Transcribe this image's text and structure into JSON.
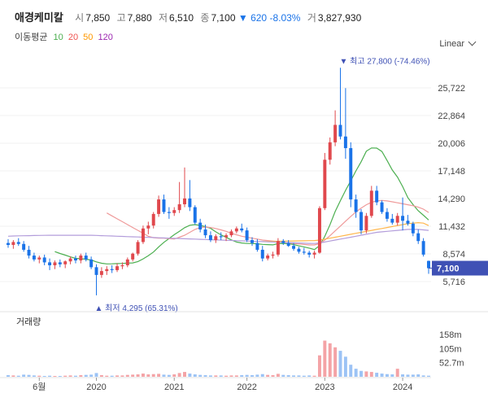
{
  "header": {
    "name": "애경케미칼",
    "open_label": "시",
    "open": "7,850",
    "high_label": "고",
    "high": "7,880",
    "low_label": "저",
    "low": "6,510",
    "close_label": "종",
    "close": "7,100",
    "change_arrow": "▼",
    "change": "620",
    "change_pct": "-8.03%",
    "volume_label": "거",
    "volume": "3,827,930",
    "ma_label": "이동평균",
    "ma_periods": [
      {
        "label": "10",
        "color": "#4caf50"
      },
      {
        "label": "20",
        "color": "#ef5350"
      },
      {
        "label": "50",
        "color": "#ff9800"
      },
      {
        "label": "120",
        "color": "#9c27b0"
      }
    ],
    "scale_label": "Linear"
  },
  "annotations": {
    "high_marker": "▼ 최고 27,800 (-74.46%)",
    "low_marker": "▲ 최저 4,295 (65.31%)",
    "last_price": "7,100",
    "volume_title": "거래량"
  },
  "chart_data": {
    "type": "candlestick",
    "title": "애경케미칼",
    "price_axis_ticks": [
      5716,
      8574,
      11432,
      14290,
      17148,
      20006,
      22864,
      25722
    ],
    "price_axis_labels": [
      "5,716",
      "8,574",
      "11,432",
      "14,290",
      "17,148",
      "20,006",
      "22,864",
      "25,722"
    ],
    "ylim": [
      4000,
      29000
    ],
    "x_tick_labels": [
      "6월",
      "2020",
      "2021",
      "2022",
      "2023",
      "2024"
    ],
    "last_price": 7100,
    "max_high": 27800,
    "min_low": 4295,
    "volume_axis_labels": [
      "158m",
      "105m",
      "52.7m"
    ],
    "volume_axis_values": [
      158,
      105,
      52.7
    ],
    "volume_unit": "m",
    "candles": [
      {
        "o": 9700,
        "h": 10100,
        "l": 9200,
        "c": 9500
      },
      {
        "o": 9500,
        "h": 10000,
        "l": 9100,
        "c": 9800
      },
      {
        "o": 9800,
        "h": 10200,
        "l": 9400,
        "c": 9600
      },
      {
        "o": 9600,
        "h": 9900,
        "l": 8800,
        "c": 9000
      },
      {
        "o": 9000,
        "h": 9400,
        "l": 8100,
        "c": 8400
      },
      {
        "o": 8400,
        "h": 8700,
        "l": 7800,
        "c": 8000
      },
      {
        "o": 8000,
        "h": 8400,
        "l": 7600,
        "c": 8200
      },
      {
        "o": 8200,
        "h": 8500,
        "l": 7400,
        "c": 7700
      },
      {
        "o": 7700,
        "h": 8100,
        "l": 6900,
        "c": 7400
      },
      {
        "o": 7400,
        "h": 7900,
        "l": 7000,
        "c": 7700
      },
      {
        "o": 7700,
        "h": 8000,
        "l": 7200,
        "c": 7500
      },
      {
        "o": 7500,
        "h": 7900,
        "l": 7100,
        "c": 7800
      },
      {
        "o": 7800,
        "h": 8300,
        "l": 7500,
        "c": 8100
      },
      {
        "o": 8100,
        "h": 8400,
        "l": 7600,
        "c": 7900
      },
      {
        "o": 7900,
        "h": 8600,
        "l": 7600,
        "c": 8400
      },
      {
        "o": 8400,
        "h": 8700,
        "l": 7800,
        "c": 8000
      },
      {
        "o": 8000,
        "h": 8300,
        "l": 7000,
        "c": 7200
      },
      {
        "o": 7200,
        "h": 7500,
        "l": 4295,
        "c": 6400
      },
      {
        "o": 6400,
        "h": 7200,
        "l": 6100,
        "c": 6800
      },
      {
        "o": 6800,
        "h": 7300,
        "l": 6400,
        "c": 7000
      },
      {
        "o": 7000,
        "h": 7400,
        "l": 6600,
        "c": 6900
      },
      {
        "o": 6900,
        "h": 7600,
        "l": 6700,
        "c": 7300
      },
      {
        "o": 7300,
        "h": 7700,
        "l": 7000,
        "c": 7400
      },
      {
        "o": 7400,
        "h": 8200,
        "l": 7200,
        "c": 8000
      },
      {
        "o": 8000,
        "h": 8700,
        "l": 7800,
        "c": 8600
      },
      {
        "o": 8600,
        "h": 10000,
        "l": 8400,
        "c": 9800
      },
      {
        "o": 9800,
        "h": 11500,
        "l": 9600,
        "c": 11200
      },
      {
        "o": 11200,
        "h": 11900,
        "l": 10600,
        "c": 11500
      },
      {
        "o": 11500,
        "h": 12900,
        "l": 11200,
        "c": 12700
      },
      {
        "o": 12700,
        "h": 14600,
        "l": 12400,
        "c": 14200
      },
      {
        "o": 14200,
        "h": 14700,
        "l": 12700,
        "c": 12900
      },
      {
        "o": 12900,
        "h": 13400,
        "l": 12200,
        "c": 12800
      },
      {
        "o": 12800,
        "h": 13400,
        "l": 12500,
        "c": 13100
      },
      {
        "o": 13100,
        "h": 16000,
        "l": 12800,
        "c": 13700
      },
      {
        "o": 13700,
        "h": 17500,
        "l": 13400,
        "c": 14300
      },
      {
        "o": 14300,
        "h": 16200,
        "l": 13000,
        "c": 13400
      },
      {
        "o": 13400,
        "h": 13600,
        "l": 11600,
        "c": 11800
      },
      {
        "o": 11800,
        "h": 12200,
        "l": 10800,
        "c": 11100
      },
      {
        "o": 11100,
        "h": 11600,
        "l": 10200,
        "c": 10500
      },
      {
        "o": 10500,
        "h": 10900,
        "l": 9800,
        "c": 10000
      },
      {
        "o": 10000,
        "h": 10600,
        "l": 9700,
        "c": 10400
      },
      {
        "o": 10400,
        "h": 10800,
        "l": 10000,
        "c": 10300
      },
      {
        "o": 10300,
        "h": 10700,
        "l": 9900,
        "c": 10500
      },
      {
        "o": 10500,
        "h": 11100,
        "l": 10300,
        "c": 10900
      },
      {
        "o": 10900,
        "h": 11400,
        "l": 10700,
        "c": 11200
      },
      {
        "o": 11200,
        "h": 11700,
        "l": 10800,
        "c": 11000
      },
      {
        "o": 11000,
        "h": 11300,
        "l": 9800,
        "c": 10000
      },
      {
        "o": 10000,
        "h": 10300,
        "l": 9400,
        "c": 9700
      },
      {
        "o": 9700,
        "h": 10100,
        "l": 8800,
        "c": 9000
      },
      {
        "o": 9000,
        "h": 9400,
        "l": 7800,
        "c": 8100
      },
      {
        "o": 8100,
        "h": 8600,
        "l": 7900,
        "c": 8400
      },
      {
        "o": 8400,
        "h": 8800,
        "l": 8100,
        "c": 8500
      },
      {
        "o": 8500,
        "h": 10200,
        "l": 8300,
        "c": 9900
      },
      {
        "o": 9900,
        "h": 10100,
        "l": 9500,
        "c": 9700
      },
      {
        "o": 9700,
        "h": 10000,
        "l": 9300,
        "c": 9400
      },
      {
        "o": 9400,
        "h": 9700,
        "l": 8900,
        "c": 9100
      },
      {
        "o": 9100,
        "h": 9300,
        "l": 8600,
        "c": 8800
      },
      {
        "o": 8800,
        "h": 9200,
        "l": 8500,
        "c": 8700
      },
      {
        "o": 8700,
        "h": 8900,
        "l": 8200,
        "c": 8500
      },
      {
        "o": 8500,
        "h": 8900,
        "l": 8100,
        "c": 8700
      },
      {
        "o": 8700,
        "h": 13500,
        "l": 8600,
        "c": 13300
      },
      {
        "o": 13300,
        "h": 19000,
        "l": 13100,
        "c": 18300
      },
      {
        "o": 18300,
        "h": 20600,
        "l": 17800,
        "c": 20100
      },
      {
        "o": 20100,
        "h": 23400,
        "l": 19700,
        "c": 21900
      },
      {
        "o": 21900,
        "h": 27800,
        "l": 20400,
        "c": 20700
      },
      {
        "o": 20700,
        "h": 25700,
        "l": 18400,
        "c": 19500
      },
      {
        "o": 19500,
        "h": 20100,
        "l": 13400,
        "c": 14200
      },
      {
        "o": 14200,
        "h": 14700,
        "l": 12300,
        "c": 12900
      },
      {
        "o": 12900,
        "h": 13200,
        "l": 10600,
        "c": 11000
      },
      {
        "o": 11000,
        "h": 12800,
        "l": 10700,
        "c": 12500
      },
      {
        "o": 12500,
        "h": 15600,
        "l": 12300,
        "c": 15100
      },
      {
        "o": 15100,
        "h": 15600,
        "l": 13600,
        "c": 13900
      },
      {
        "o": 13900,
        "h": 14100,
        "l": 12700,
        "c": 12900
      },
      {
        "o": 12900,
        "h": 13300,
        "l": 11900,
        "c": 12200
      },
      {
        "o": 12200,
        "h": 12700,
        "l": 11600,
        "c": 11800
      },
      {
        "o": 11800,
        "h": 12800,
        "l": 11500,
        "c": 12500
      },
      {
        "o": 12500,
        "h": 14400,
        "l": 11000,
        "c": 12000
      },
      {
        "o": 12000,
        "h": 12600,
        "l": 11500,
        "c": 11700
      },
      {
        "o": 11700,
        "h": 11900,
        "l": 10400,
        "c": 10700
      },
      {
        "o": 10700,
        "h": 11100,
        "l": 9600,
        "c": 9900
      },
      {
        "o": 9900,
        "h": 10200,
        "l": 8300,
        "c": 8500
      },
      {
        "o": 7850,
        "h": 7880,
        "l": 6510,
        "c": 7100
      }
    ],
    "volumes": [
      6,
      5,
      4,
      8,
      7,
      5,
      4,
      3,
      4,
      3,
      3,
      4,
      5,
      4,
      6,
      7,
      8,
      14,
      6,
      4,
      4,
      5,
      5,
      7,
      8,
      9,
      12,
      9,
      10,
      11,
      8,
      7,
      9,
      14,
      18,
      12,
      9,
      7,
      6,
      5,
      5,
      5,
      4,
      5,
      5,
      6,
      7,
      6,
      8,
      10,
      7,
      6,
      11,
      7,
      6,
      5,
      5,
      4,
      5,
      4,
      80,
      135,
      125,
      110,
      97,
      75,
      45,
      30,
      22,
      20,
      18,
      15,
      12,
      10,
      9,
      30,
      9,
      8,
      8,
      9,
      5,
      4
    ],
    "ma": {
      "ma10": [
        null,
        null,
        null,
        null,
        null,
        null,
        null,
        null,
        null,
        8810,
        8620,
        8450,
        8260,
        8110,
        8080,
        8020,
        7940,
        7750,
        7610,
        7540,
        7550,
        7570,
        7590,
        7620,
        7640,
        7780,
        8060,
        8390,
        8770,
        9300,
        9770,
        10160,
        10560,
        10910,
        11280,
        11530,
        11600,
        11520,
        11390,
        11210,
        10850,
        10540,
        10280,
        10020,
        9800,
        9700,
        9650,
        9650,
        9620,
        9560,
        9530,
        9510,
        9630,
        9650,
        9630,
        9540,
        9410,
        9300,
        9170,
        9020,
        9440,
        10380,
        11580,
        12950,
        14070,
        15140,
        16130,
        17150,
        18090,
        19180,
        19520,
        19500,
        19150,
        18220,
        17240,
        16510,
        15520,
        14370,
        13660,
        13030,
        12570,
        12080
      ],
      "ma20": [
        null,
        null,
        null,
        null,
        null,
        null,
        null,
        null,
        null,
        null,
        null,
        null,
        null,
        null,
        null,
        null,
        null,
        null,
        null,
        12800,
        12500,
        12200,
        11900,
        11600,
        11300,
        11000,
        10700,
        10400,
        10250,
        10200,
        10200,
        10150,
        10100,
        10300,
        10500,
        10800,
        11100,
        11300,
        11350,
        11300,
        11200,
        11050,
        10900,
        10700,
        10550,
        10400,
        10300,
        10200,
        10100,
        10000,
        9950,
        9900,
        9850,
        9800,
        9700,
        9650,
        9600,
        9550,
        9500,
        9500,
        9650,
        10000,
        10450,
        10950,
        11450,
        11950,
        12450,
        12900,
        13300,
        13650,
        13900,
        14050,
        14100,
        14050,
        13950,
        13850,
        13750,
        13650,
        13550,
        13400,
        13200,
        12850
      ],
      "ma50": [
        null,
        null,
        null,
        null,
        null,
        null,
        null,
        null,
        null,
        null,
        null,
        null,
        null,
        null,
        null,
        null,
        null,
        null,
        null,
        null,
        null,
        null,
        null,
        null,
        null,
        null,
        null,
        null,
        null,
        null,
        null,
        null,
        null,
        null,
        null,
        null,
        null,
        null,
        null,
        null,
        null,
        null,
        null,
        null,
        null,
        null,
        null,
        null,
        null,
        9850,
        9860,
        9870,
        9880,
        9890,
        9900,
        9910,
        9920,
        9930,
        9940,
        9950,
        10000,
        10100,
        10200,
        10300,
        10400,
        10500,
        10600,
        10700,
        10800,
        10900,
        11000,
        11100,
        11200,
        11300,
        11400,
        11500,
        11600,
        11700,
        11750,
        11800,
        11750,
        11500
      ],
      "ma120": [
        10400,
        10420,
        10440,
        10450,
        10460,
        10470,
        10480,
        10490,
        10500,
        10500,
        10500,
        10500,
        10500,
        10500,
        10500,
        10500,
        10500,
        10480,
        10460,
        10440,
        10420,
        10400,
        10380,
        10360,
        10340,
        10320,
        10300,
        10280,
        10260,
        10240,
        10220,
        10200,
        10180,
        10160,
        10140,
        10120,
        10100,
        10080,
        10060,
        10040,
        10020,
        10000,
        9980,
        9960,
        9940,
        9920,
        9900,
        9880,
        9860,
        9840,
        9820,
        9800,
        9780,
        9760,
        9740,
        9720,
        9700,
        9680,
        9660,
        9650,
        9700,
        9800,
        9900,
        10000,
        10100,
        10200,
        10300,
        10400,
        10500,
        10600,
        10700,
        10800,
        10850,
        10900,
        10950,
        11000,
        11050,
        11100,
        11100,
        11100,
        11050,
        11000
      ]
    }
  }
}
